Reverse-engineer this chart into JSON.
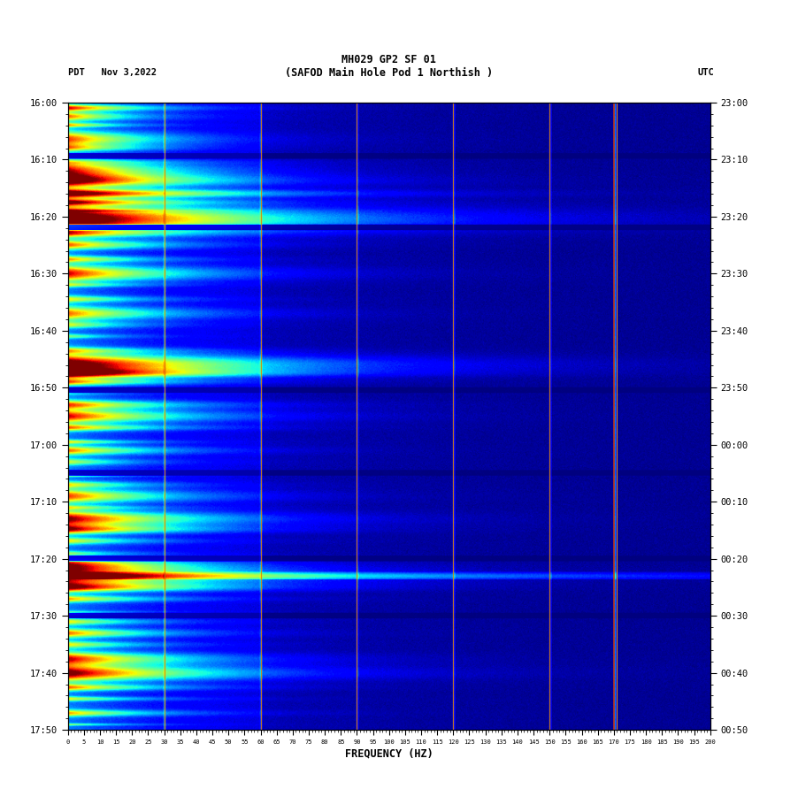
{
  "title_line1": "MH029 GP2 SF 01",
  "title_line2": "(SAFOD Main Hole Pod 1 Northish )",
  "left_label": "PDT   Nov 3,2022",
  "right_label": "UTC",
  "xlabel": "FREQUENCY (HZ)",
  "freq_min": 0,
  "freq_max": 200,
  "left_yticks": [
    "16:00",
    "16:10",
    "16:20",
    "16:30",
    "16:40",
    "16:50",
    "17:00",
    "17:10",
    "17:20",
    "17:30",
    "17:40",
    "17:50"
  ],
  "right_yticks": [
    "23:00",
    "23:10",
    "23:20",
    "23:30",
    "23:40",
    "23:50",
    "00:00",
    "00:10",
    "00:20",
    "00:30",
    "00:40",
    "00:50"
  ],
  "background_color": "#ffffff",
  "fig_width": 9.02,
  "fig_height": 8.92,
  "dpi": 100,
  "vertical_lines_orange": [
    30,
    60,
    90,
    120,
    150
  ],
  "vertical_line_red": 170,
  "seed": 42
}
